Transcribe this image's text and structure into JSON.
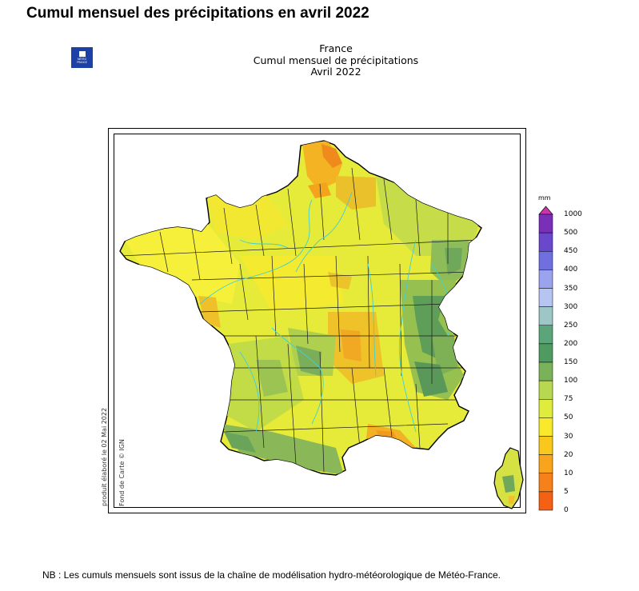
{
  "page": {
    "title": "Cumul mensuel des précipitations en avril 2022",
    "footnote": "NB : Les cumuls mensuels sont issus de la chaîne de modélisation hydro-météorologique de Météo-France."
  },
  "logo": {
    "line1": "MÉTÉO",
    "line2": "FRANCE"
  },
  "map": {
    "header_line1": "France",
    "header_line2": "Cumul mensuel de précipitations",
    "header_line3": "Avril 2022",
    "credit_date": "produit élaboré le 02 Mai 2022",
    "credit_source": "Fond de Carte © IGN",
    "colors": {
      "land_base": "#e8ec3a",
      "orange": "#f4a41c",
      "yellow_orange": "#f2cd20",
      "light_green": "#b6d64a",
      "mid_green": "#6fa85a",
      "river": "#3fd0d8"
    }
  },
  "legend": {
    "unit": "mm",
    "labels": [
      "1000",
      "500",
      "450",
      "400",
      "350",
      "300",
      "250",
      "200",
      "150",
      "100",
      "75",
      "50",
      "30",
      "20",
      "10",
      "5",
      "0"
    ],
    "colors": [
      "#cc33aa",
      "#7a2fb8",
      "#6a48cc",
      "#6f6fe0",
      "#9aa4ee",
      "#b6c4f2",
      "#9ec6c6",
      "#5aa67a",
      "#4e9a60",
      "#7ab25a",
      "#b8d850",
      "#e0ec3c",
      "#f8ea2a",
      "#f8c81c",
      "#f8a41c",
      "#f6801a",
      "#f46014"
    ]
  }
}
